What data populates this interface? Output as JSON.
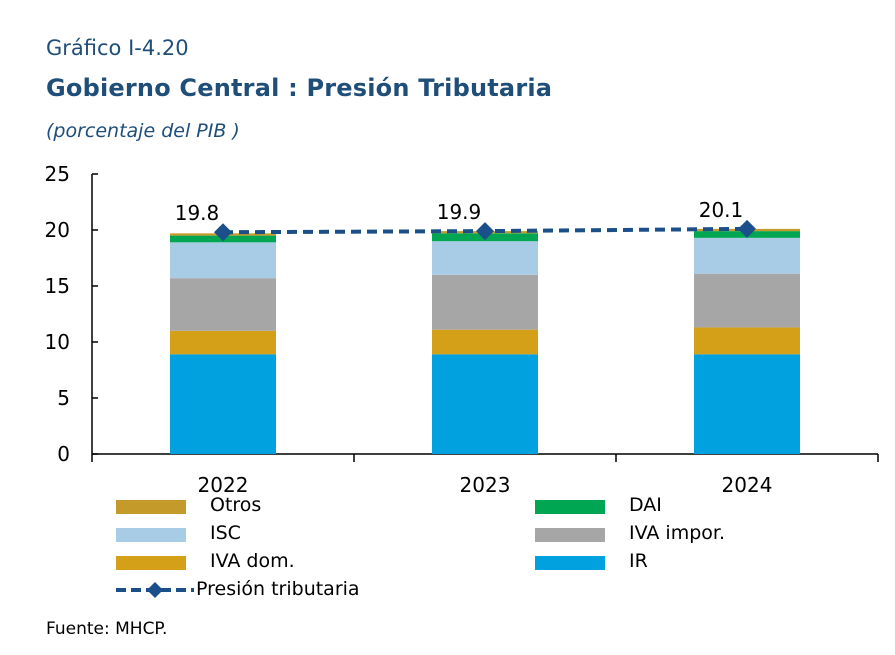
{
  "figure_label": "Gráfico I-4.20",
  "chart_data": {
    "type": "bar",
    "stacked": true,
    "title": "Gobierno Central : Presión Tributaria",
    "subtitle": "(porcentaje del PIB )",
    "categories": [
      "2022",
      "2023",
      "2024"
    ],
    "ylim": [
      0,
      25
    ],
    "yticks": [
      0,
      5,
      10,
      15,
      20,
      25
    ],
    "grid": false,
    "series": [
      {
        "name": "IR",
        "color": "#00a1de",
        "values": [
          8.9,
          8.9,
          8.9
        ]
      },
      {
        "name": "IVA dom.",
        "color": "#d4a017",
        "values": [
          2.1,
          2.2,
          2.4
        ]
      },
      {
        "name": "IVA impor.",
        "color": "#a6a6a6",
        "values": [
          4.7,
          4.9,
          4.8
        ]
      },
      {
        "name": "ISC",
        "color": "#a9cce6",
        "values": [
          3.2,
          3.0,
          3.2
        ]
      },
      {
        "name": "DAI",
        "color": "#00a651",
        "values": [
          0.6,
          0.7,
          0.6
        ]
      },
      {
        "name": "Otros",
        "color": "#c49a2a",
        "values": [
          0.2,
          0.2,
          0.2
        ]
      }
    ],
    "line": {
      "name": "Presión tributaria",
      "color": "#1a4f8a",
      "values": [
        19.8,
        19.9,
        20.1
      ],
      "labels": [
        "19.8",
        "19.9",
        "20.1"
      ]
    }
  },
  "legend": {
    "left": [
      {
        "label": "Otros",
        "color": "#c49a2a"
      },
      {
        "label": "ISC",
        "color": "#a9cce6"
      },
      {
        "label": "IVA dom.",
        "color": "#d4a017"
      }
    ],
    "right": [
      {
        "label": "DAI",
        "color": "#00a651"
      },
      {
        "label": "IVA impor.",
        "color": "#a6a6a6"
      },
      {
        "label": "IR",
        "color": "#00a1de"
      }
    ],
    "line_label": "Presión tributaria"
  },
  "source": "Fuente: MHCP."
}
